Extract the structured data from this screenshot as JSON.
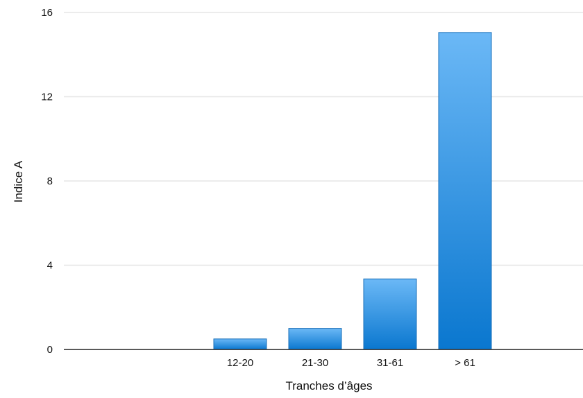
{
  "chart_data": {
    "type": "bar",
    "categories": [
      "12-20",
      "21-30",
      "31-61",
      "> 61"
    ],
    "values": [
      0.5,
      1.0,
      3.35,
      15.05
    ],
    "xlabel": "Tranches d’âges",
    "ylabel": "Indice A",
    "ylim": [
      0,
      16
    ],
    "yticks": [
      0,
      4,
      8,
      12,
      16
    ],
    "grid": true,
    "legend": "none",
    "colors": {
      "bar_top": "#6bb8f6",
      "bar_bottom": "#0a77cf",
      "bar_edge": "#1a6fb8",
      "grid": "#e6e6e6",
      "axis": "#222222"
    }
  }
}
